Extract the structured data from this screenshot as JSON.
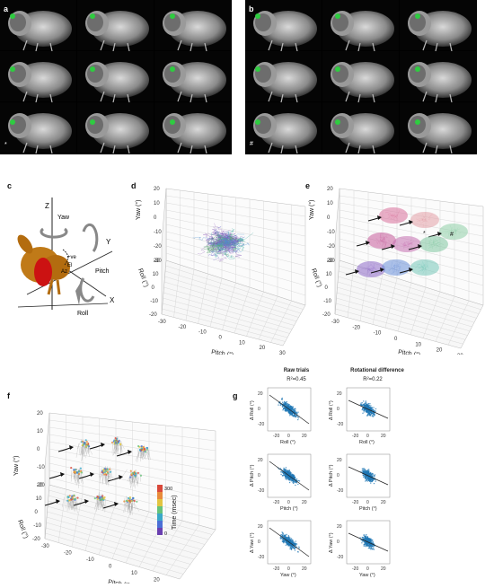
{
  "figure": {
    "panels": {
      "a": {
        "label": "a",
        "mark": "*"
      },
      "b": {
        "label": "b",
        "mark": "#"
      },
      "c": {
        "label": "c",
        "axes": {
          "z": "Z",
          "y": "Y",
          "x": "X"
        },
        "rotations": {
          "yaw": "Yaw",
          "pitch": "Pitch",
          "roll": "Roll"
        },
        "angle_labels": {
          "ve": "+ve",
          "el": "El",
          "az": "Az"
        }
      },
      "d": {
        "label": "d",
        "xlabel": "Pitch (°)",
        "ylabel": "Roll (°)",
        "zlabel": "Yaw (°)",
        "x_ticks": [
          "-30",
          "-20",
          "-10",
          "0",
          "10",
          "20",
          "30"
        ],
        "y_ticks": [
          "20",
          "10",
          "0",
          "-10",
          "-20"
        ],
        "z_ticks": [
          "20",
          "10",
          "0",
          "-10",
          "-20",
          "-30"
        ]
      },
      "e": {
        "label": "e",
        "xlabel": "Pitch (°)",
        "ylabel": "Roll (°)",
        "zlabel": "Yaw (°)",
        "x_ticks": [
          "-30",
          "-20",
          "-10",
          "0",
          "10",
          "20",
          "30"
        ],
        "y_ticks": [
          "20",
          "10",
          "0",
          "-10",
          "-20"
        ],
        "z_ticks": [
          "20",
          "10",
          "0",
          "-10",
          "-20",
          "-30"
        ],
        "marks": {
          "star": "*",
          "hash": "#"
        }
      },
      "f": {
        "label": "f",
        "xlabel": "Pitch (°)",
        "ylabel": "Roll (°)",
        "zlabel": "Yaw (°)",
        "x_ticks": [
          "-30",
          "-20",
          "-10",
          "0",
          "10",
          "20",
          "30"
        ],
        "y_ticks": [
          "20",
          "10",
          "0",
          "-10",
          "-20"
        ],
        "z_ticks": [
          "20",
          "10",
          "0",
          "-10",
          "-20"
        ],
        "colorbar_label": "Time (msec)",
        "colorbar_ticks": [
          "300",
          "0"
        ]
      },
      "g": {
        "label": "g",
        "col_headers": [
          "Raw trials",
          "Rotational difference"
        ],
        "r2": [
          "R²=0.45",
          "R²=0.22"
        ],
        "rows": [
          {
            "ylabel": "Δ Roll (°)",
            "xlabel": "Roll (°)"
          },
          {
            "ylabel": "Δ Pitch (°)",
            "xlabel": "Pitch (°)"
          },
          {
            "ylabel": "Δ Yaw (°)",
            "xlabel": "Yaw (°)"
          }
        ],
        "x_ticks": [
          "-20",
          "0",
          "20"
        ],
        "y_ticks": [
          "20",
          "0",
          "-20"
        ]
      }
    }
  }
}
